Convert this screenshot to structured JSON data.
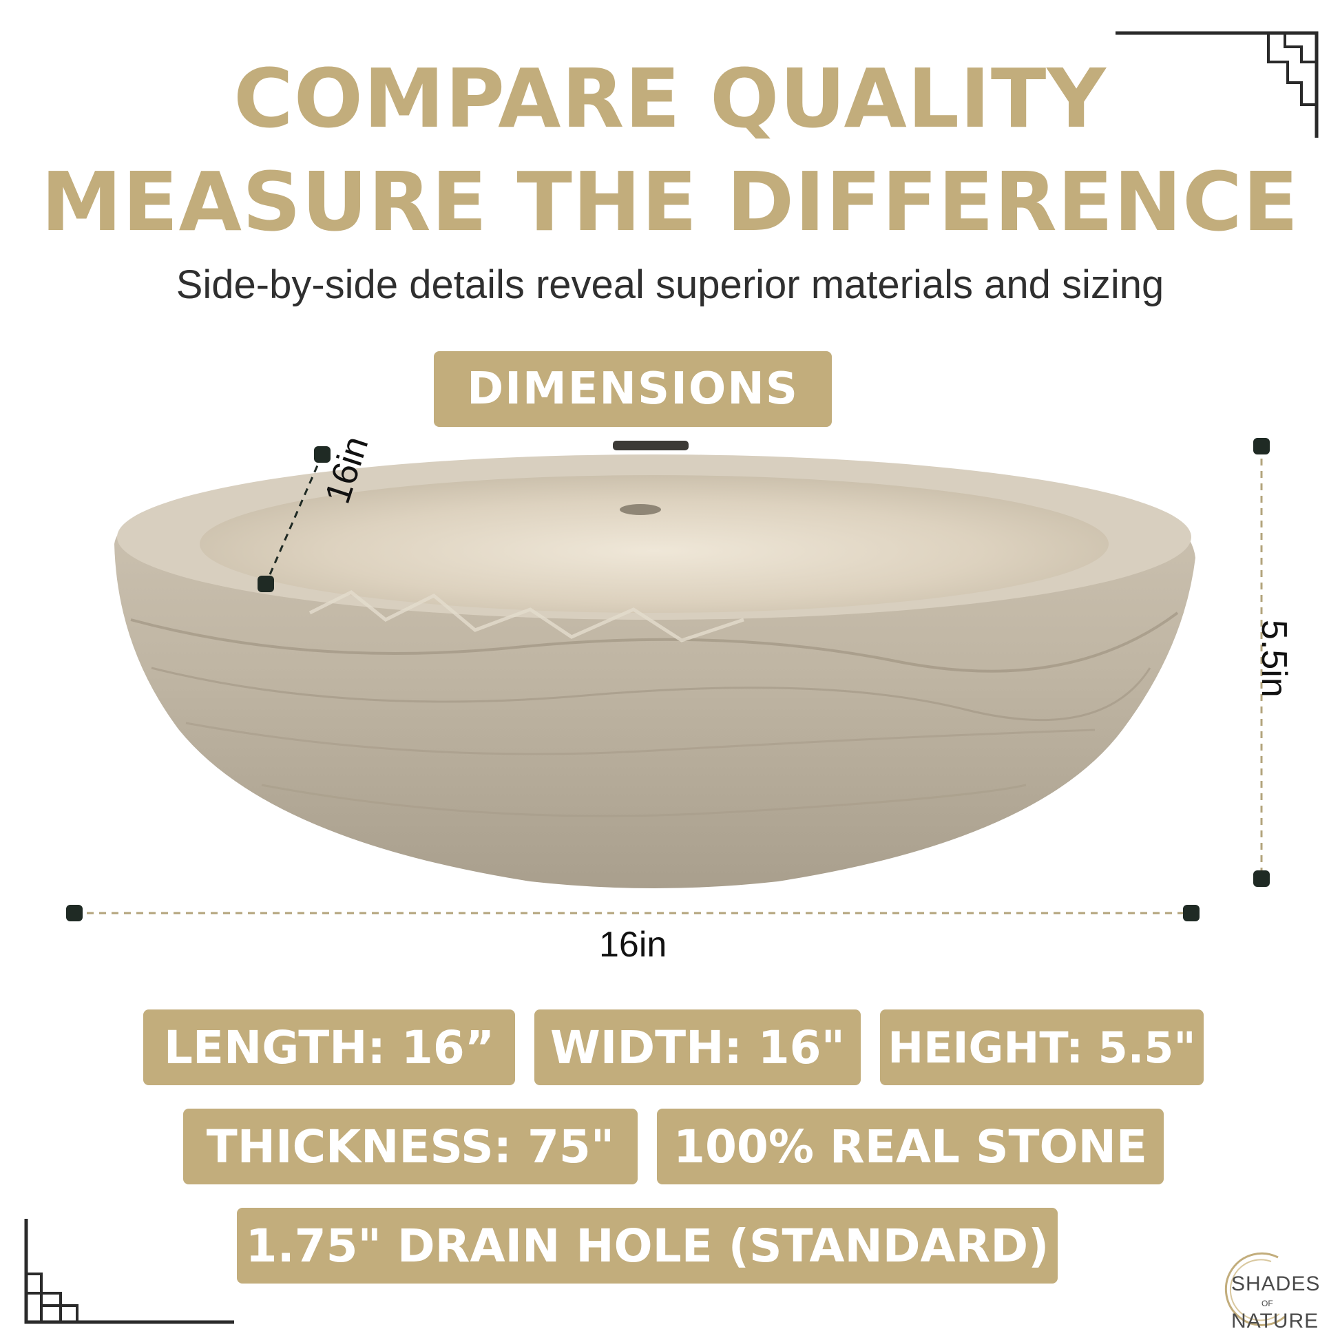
{
  "headline": {
    "line1": "COMPARE QUALITY",
    "line2": "MEASURE THE DIFFERENCE"
  },
  "subtitle": "Side-by-side details reveal superior materials and sizing",
  "dimensions_badge": "DIMENSIONS",
  "measurements": {
    "width": "16in",
    "depth": "16in",
    "height": "5.5in"
  },
  "specs": {
    "length": "LENGTH: 16”",
    "width": "WIDTH: 16\"",
    "height": "HEIGHT: 5.5\"",
    "thickness": "THICKNESS: 75\"",
    "material": "100% REAL STONE",
    "drain": "1.75\" DRAIN HOLE (STANDARD)"
  },
  "logo": {
    "line1": "SHADES",
    "line2": "OF",
    "line3": "NATURE"
  },
  "colors": {
    "accent": "#c2ad7c",
    "text_dark": "#2f2f2f",
    "stone": "#cfc5b4"
  }
}
